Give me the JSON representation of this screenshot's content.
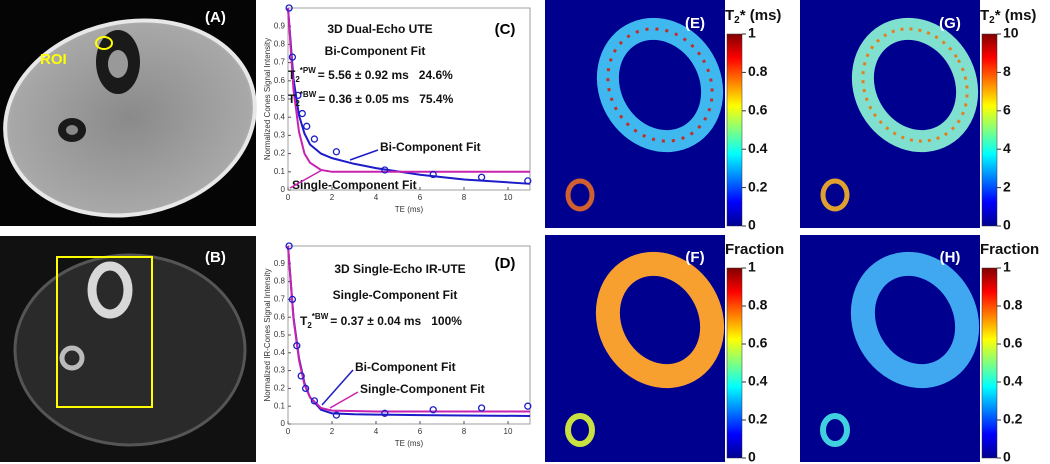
{
  "panels": {
    "A": "(A)",
    "roi": "ROI",
    "B": "(B)"
  },
  "chart_data": [
    {
      "type": "line",
      "panel": "(C)",
      "title": "3D Dual-Echo UTE",
      "subtitle": "Bi-Component Fit",
      "fits": [
        {
          "sym": "T",
          "sub": "2",
          "sup": "*PW",
          "text": "= 5.56 ± 0.92 ms",
          "frac": "24.6%"
        },
        {
          "sym": "T",
          "sub": "2",
          "sup": "*BW",
          "text": "= 0.36 ± 0.05 ms",
          "frac": "75.4%"
        }
      ],
      "xlabel": "TE (ms)",
      "ylabel": "Normalized Cones Signal Intensity",
      "xlim": [
        0,
        11
      ],
      "ylim": [
        0,
        1
      ],
      "xticks": [
        0,
        2,
        4,
        6,
        8,
        10
      ],
      "yticks": [
        0,
        0.1,
        0.2,
        0.3,
        0.4,
        0.5,
        0.6,
        0.7,
        0.8,
        0.9
      ],
      "series": [
        {
          "name": "Bi-Component Fit",
          "color": "#1c1cc8",
          "x": [
            0,
            0.25,
            0.5,
            0.75,
            1,
            1.5,
            2,
            3,
            4,
            6,
            8,
            11
          ],
          "values": [
            1,
            0.61,
            0.41,
            0.31,
            0.25,
            0.2,
            0.175,
            0.144,
            0.12,
            0.084,
            0.058,
            0.034
          ]
        },
        {
          "name": "Single-Component Fit",
          "color": "#c822b0",
          "x": [
            0,
            0.25,
            0.5,
            0.75,
            1,
            1.5,
            2,
            4,
            11
          ],
          "values": [
            1,
            0.55,
            0.32,
            0.2,
            0.15,
            0.11,
            0.1,
            0.1,
            0.1
          ]
        },
        {
          "color": "#1c1cc8",
          "x": [
            0.05,
            0.2,
            0.45,
            0.65,
            0.85,
            1.2,
            2.2,
            4.4,
            6.6,
            8.8,
            10.9
          ],
          "values": [
            1,
            0.73,
            0.52,
            0.42,
            0.35,
            0.28,
            0.21,
            0.11,
            0.085,
            0.07,
            0.05
          ]
        }
      ]
    },
    {
      "type": "line",
      "panel": "(D)",
      "title": "3D Single-Echo IR-UTE",
      "subtitle": "Single-Component Fit",
      "fits": [
        {
          "sym": "T",
          "sub": "2",
          "sup": "*BW",
          "text": "= 0.37 ± 0.04 ms",
          "frac": "100%"
        }
      ],
      "xlabel": "TE (ms)",
      "ylabel": "Normalized IR-Cones Signal Intensity",
      "xlim": [
        0,
        11
      ],
      "ylim": [
        0,
        1
      ],
      "xticks": [
        0,
        2,
        4,
        6,
        8,
        10
      ],
      "yticks": [
        0,
        0.1,
        0.2,
        0.3,
        0.4,
        0.5,
        0.6,
        0.7,
        0.8,
        0.9
      ],
      "series": [
        {
          "name": "Bi-Component Fit",
          "color": "#1c1cc8",
          "x": [
            0,
            0.25,
            0.5,
            0.75,
            1,
            1.5,
            2,
            3,
            4,
            6,
            8,
            11
          ],
          "values": [
            1,
            0.6,
            0.37,
            0.23,
            0.15,
            0.08,
            0.06,
            0.055,
            0.053,
            0.05,
            0.048,
            0.045
          ]
        },
        {
          "name": "Single-Component Fit",
          "color": "#c822b0",
          "x": [
            0,
            0.25,
            0.5,
            0.75,
            1,
            1.5,
            2,
            4,
            11
          ],
          "values": [
            1,
            0.59,
            0.36,
            0.22,
            0.15,
            0.09,
            0.075,
            0.07,
            0.07
          ]
        },
        {
          "color": "#1c1cc8",
          "x": [
            0.05,
            0.2,
            0.4,
            0.6,
            0.8,
            1.2,
            2.2,
            4.4,
            6.6,
            8.8,
            10.9
          ],
          "values": [
            1,
            0.7,
            0.44,
            0.27,
            0.2,
            0.13,
            0.05,
            0.06,
            0.08,
            0.09,
            0.1
          ]
        }
      ]
    }
  ],
  "maps": [
    {
      "panel": "(E)",
      "label": {
        "sym": "T",
        "sub": "2",
        "rest": "* (ms)"
      },
      "clim": [
        0,
        1
      ],
      "cticks": [
        0,
        0.2,
        0.4,
        0.6,
        0.8,
        1
      ]
    },
    {
      "panel": "(G)",
      "label": {
        "sym": "T",
        "sub": "2",
        "rest": "* (ms)"
      },
      "clim": [
        0,
        10
      ],
      "cticks": [
        0,
        2,
        4,
        6,
        8,
        10
      ]
    },
    {
      "panel": "(F)",
      "label": {
        "rest": "Fraction"
      },
      "clim": [
        0,
        1
      ],
      "cticks": [
        0,
        0.2,
        0.4,
        0.6,
        0.8,
        1
      ]
    },
    {
      "panel": "(H)",
      "label": {
        "rest": "Fraction"
      },
      "clim": [
        0,
        1
      ],
      "cticks": [
        0,
        0.2,
        0.4,
        0.6,
        0.8,
        1
      ]
    }
  ]
}
